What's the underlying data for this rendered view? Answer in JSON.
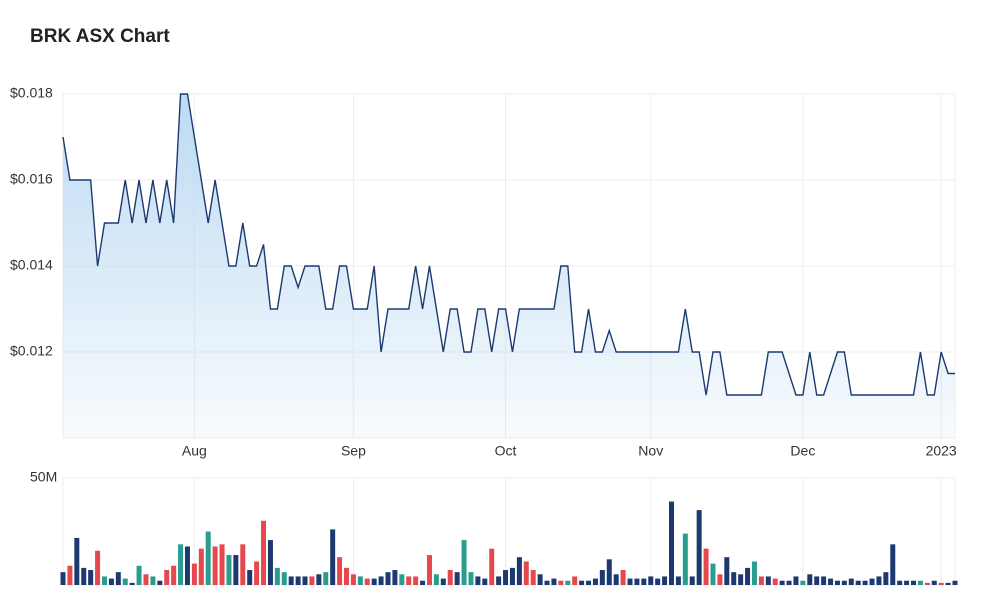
{
  "chart_data": [
    {
      "type": "area",
      "title": "BRK ASX Chart",
      "color": "#1c3a70",
      "fill": "#b9d8f2",
      "grid": true,
      "ylim": [
        0.01,
        0.018
      ],
      "yticks": [
        {
          "value": 0.012,
          "label": "$0.012"
        },
        {
          "value": 0.014,
          "label": "$0.014"
        },
        {
          "value": 0.016,
          "label": "$0.016"
        },
        {
          "value": 0.018,
          "label": "$0.018"
        }
      ],
      "categories": [
        null,
        null,
        null,
        null,
        null,
        null,
        null,
        null,
        null,
        null,
        null,
        null,
        null,
        null,
        null,
        null,
        null,
        null,
        null,
        "Aug",
        null,
        null,
        null,
        null,
        null,
        null,
        null,
        null,
        null,
        null,
        null,
        null,
        null,
        null,
        null,
        null,
        null,
        null,
        null,
        null,
        null,
        null,
        "Sep",
        null,
        null,
        null,
        null,
        null,
        null,
        null,
        null,
        null,
        null,
        null,
        null,
        null,
        null,
        null,
        null,
        null,
        null,
        null,
        null,
        null,
        "Oct",
        null,
        null,
        null,
        null,
        null,
        null,
        null,
        null,
        null,
        null,
        null,
        null,
        null,
        null,
        null,
        null,
        null,
        null,
        null,
        null,
        "Nov",
        null,
        null,
        null,
        null,
        null,
        null,
        null,
        null,
        null,
        null,
        null,
        null,
        null,
        null,
        null,
        null,
        null,
        null,
        null,
        null,
        null,
        "Dec",
        null,
        null,
        null,
        null,
        null,
        null,
        null,
        null,
        null,
        null,
        null,
        null,
        null,
        null,
        null,
        null,
        null,
        null,
        null,
        "2023",
        null,
        null
      ],
      "values": [
        0.017,
        0.016,
        0.016,
        0.016,
        0.016,
        0.014,
        0.015,
        0.015,
        0.015,
        0.016,
        0.015,
        0.016,
        0.015,
        0.016,
        0.015,
        0.016,
        0.015,
        0.018,
        0.018,
        0.017,
        0.016,
        0.015,
        0.016,
        0.015,
        0.014,
        0.014,
        0.015,
        0.014,
        0.014,
        0.0145,
        0.013,
        0.013,
        0.014,
        0.014,
        0.0135,
        0.014,
        0.014,
        0.014,
        0.013,
        0.013,
        0.014,
        0.014,
        0.013,
        0.013,
        0.013,
        0.014,
        0.012,
        0.013,
        0.013,
        0.013,
        0.013,
        0.014,
        0.013,
        0.014,
        0.013,
        0.012,
        0.013,
        0.013,
        0.012,
        0.012,
        0.013,
        0.013,
        0.012,
        0.013,
        0.013,
        0.012,
        0.013,
        0.013,
        0.013,
        0.013,
        0.013,
        0.013,
        0.014,
        0.014,
        0.012,
        0.012,
        0.013,
        0.012,
        0.012,
        0.0125,
        0.012,
        0.012,
        0.012,
        0.012,
        0.012,
        0.012,
        0.012,
        0.012,
        0.012,
        0.012,
        0.013,
        0.012,
        0.012,
        0.011,
        0.012,
        0.012,
        0.011,
        0.011,
        0.011,
        0.011,
        0.011,
        0.011,
        0.012,
        0.012,
        0.012,
        0.0115,
        0.011,
        0.011,
        0.012,
        0.011,
        0.011,
        0.0115,
        0.012,
        0.012,
        0.011,
        0.011,
        0.011,
        0.011,
        0.011,
        0.011,
        0.011,
        0.011,
        0.011,
        0.011,
        0.012,
        0.011,
        0.011,
        0.012,
        0.0115,
        0.0115
      ]
    },
    {
      "type": "bar",
      "grid": true,
      "ylim": [
        0,
        50
      ],
      "yticks": [
        {
          "value": 50,
          "label": "50M"
        }
      ],
      "values": [
        6,
        9,
        22,
        8,
        7,
        16,
        4,
        3,
        6,
        3,
        1,
        9,
        5,
        4,
        2,
        7,
        9,
        19,
        18,
        10,
        17,
        25,
        18,
        19,
        14,
        14,
        19,
        7,
        11,
        30,
        21,
        8,
        6,
        4,
        4,
        4,
        4,
        5,
        6,
        26,
        13,
        8,
        5,
        4,
        3,
        3,
        4,
        6,
        7,
        5,
        4,
        4,
        2,
        14,
        5,
        3,
        7,
        6,
        21,
        6,
        4,
        3,
        17,
        4,
        7,
        8,
        13,
        11,
        7,
        5,
        2,
        3,
        2,
        2,
        4,
        2,
        2,
        3,
        7,
        12,
        5,
        7,
        3,
        3,
        3,
        4,
        3,
        4,
        39,
        4,
        24,
        4,
        35,
        17,
        10,
        5,
        13,
        6,
        5,
        8,
        11,
        4,
        4,
        3,
        2,
        2,
        4,
        2,
        5,
        4,
        4,
        3,
        2,
        2,
        3,
        2,
        2,
        3,
        4,
        6,
        19,
        2,
        2,
        2,
        2,
        1,
        2,
        1,
        1,
        2
      ],
      "colors": [
        "#1c3a70",
        "#e5484d",
        "#1c3a70",
        "#1c3a70",
        "#1c3a70",
        "#e5484d",
        "#2a9d8f",
        "#1c3a70",
        "#1c3a70",
        "#2a9d8f",
        "#1c3a70",
        "#2a9d8f",
        "#e5484d",
        "#2a9d8f",
        "#1c3a70",
        "#e5484d",
        "#e5484d",
        "#2a9d8f",
        "#1c3a70",
        "#e5484d",
        "#e5484d",
        "#2a9d8f",
        "#e5484d",
        "#e5484d",
        "#2a9d8f",
        "#1c3a70",
        "#e5484d",
        "#1c3a70",
        "#e5484d",
        "#e5484d",
        "#1c3a70",
        "#2a9d8f",
        "#2a9d8f",
        "#1c3a70",
        "#1c3a70",
        "#1c3a70",
        "#e5484d",
        "#1c3a70",
        "#2a9d8f",
        "#1c3a70",
        "#e5484d",
        "#e5484d",
        "#e5484d",
        "#2a9d8f",
        "#e5484d",
        "#1c3a70",
        "#1c3a70",
        "#1c3a70",
        "#1c3a70",
        "#2a9d8f",
        "#e5484d",
        "#e5484d",
        "#1c3a70",
        "#e5484d",
        "#2a9d8f",
        "#1c3a70",
        "#e5484d",
        "#1c3a70",
        "#2a9d8f",
        "#2a9d8f",
        "#1c3a70",
        "#1c3a70",
        "#e5484d",
        "#1c3a70",
        "#1c3a70",
        "#1c3a70",
        "#1c3a70",
        "#e5484d",
        "#e5484d",
        "#1c3a70",
        "#1c3a70",
        "#1c3a70",
        "#e5484d",
        "#2a9d8f",
        "#e5484d",
        "#1c3a70",
        "#1c3a70",
        "#1c3a70",
        "#1c3a70",
        "#1c3a70",
        "#1c3a70",
        "#e5484d",
        "#1c3a70",
        "#1c3a70",
        "#1c3a70",
        "#1c3a70",
        "#1c3a70",
        "#1c3a70",
        "#1c3a70",
        "#1c3a70",
        "#2a9d8f",
        "#1c3a70",
        "#1c3a70",
        "#e5484d",
        "#2a9d8f",
        "#e5484d",
        "#1c3a70",
        "#1c3a70",
        "#1c3a70",
        "#1c3a70",
        "#2a9d8f",
        "#e5484d",
        "#1c3a70",
        "#e5484d",
        "#1c3a70",
        "#1c3a70",
        "#1c3a70",
        "#2a9d8f",
        "#1c3a70",
        "#1c3a70",
        "#1c3a70",
        "#1c3a70",
        "#1c3a70",
        "#1c3a70",
        "#1c3a70",
        "#1c3a70",
        "#1c3a70",
        "#1c3a70",
        "#1c3a70",
        "#1c3a70",
        "#1c3a70",
        "#1c3a70",
        "#1c3a70",
        "#1c3a70",
        "#2a9d8f",
        "#e5484d",
        "#1c3a70",
        "#e5484d",
        "#1c3a70",
        "#1c3a70"
      ]
    }
  ]
}
